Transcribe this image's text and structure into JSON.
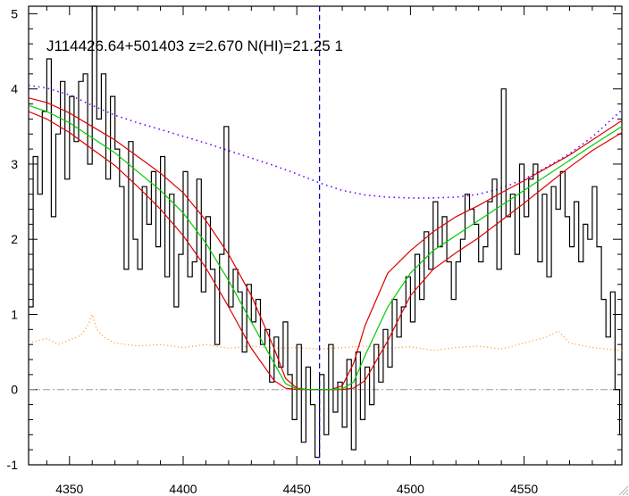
{
  "chart_data": {
    "type": "line",
    "title": "J114426.64+501403 z=2.670 N(HI)=21.25 1",
    "xlabel": "",
    "ylabel": "",
    "xlim": [
      4332,
      4593
    ],
    "ylim": [
      -1,
      5.1
    ],
    "xticks": [
      4350,
      4400,
      4450,
      4500,
      4550
    ],
    "yticks": [
      -1,
      0,
      1,
      2,
      3,
      4,
      5
    ],
    "grid": false,
    "vline_x": 4460,
    "zero_line_y": 0,
    "colors": {
      "flux": "#000000",
      "fit": "#00cc00",
      "fit_bounds": "#dd0000",
      "continuum": "#6a00ff",
      "error": "#ff8800",
      "zero_line": "#999999",
      "vline": "#0000cc"
    },
    "series": [
      {
        "key": "flux",
        "style": "step",
        "x": [
          4332,
          4334,
          4336,
          4338,
          4340,
          4342,
          4344,
          4346,
          4348,
          4350,
          4352,
          4354,
          4356,
          4358,
          4360,
          4362,
          4364,
          4366,
          4368,
          4370,
          4372,
          4374,
          4376,
          4378,
          4380,
          4382,
          4384,
          4386,
          4388,
          4390,
          4392,
          4394,
          4396,
          4398,
          4400,
          4402,
          4404,
          4406,
          4408,
          4410,
          4412,
          4414,
          4416,
          4418,
          4420,
          4422,
          4424,
          4426,
          4428,
          4430,
          4432,
          4434,
          4436,
          4438,
          4440,
          4442,
          4444,
          4446,
          4448,
          4450,
          4452,
          4454,
          4456,
          4458,
          4460,
          4462,
          4464,
          4466,
          4468,
          4470,
          4472,
          4474,
          4476,
          4478,
          4480,
          4482,
          4484,
          4486,
          4488,
          4490,
          4492,
          4494,
          4496,
          4498,
          4500,
          4502,
          4504,
          4506,
          4508,
          4510,
          4512,
          4514,
          4516,
          4518,
          4520,
          4522,
          4524,
          4526,
          4528,
          4530,
          4532,
          4534,
          4536,
          4538,
          4540,
          4542,
          4544,
          4546,
          4548,
          4550,
          4552,
          4554,
          4556,
          4558,
          4560,
          4562,
          4564,
          4566,
          4568,
          4570,
          4572,
          4574,
          4576,
          4578,
          4580,
          4582,
          4584,
          4586,
          4588,
          4590,
          4592
        ],
        "y": [
          1.1,
          3.1,
          2.6,
          3.7,
          4.4,
          2.3,
          3.4,
          4.1,
          2.8,
          3.9,
          3.3,
          4.1,
          4.2,
          3.0,
          5.1,
          3.6,
          4.2,
          2.8,
          3.9,
          3.2,
          2.7,
          1.6,
          3.3,
          2.0,
          1.6,
          2.7,
          2.2,
          2.9,
          1.9,
          3.1,
          1.5,
          2.6,
          1.1,
          1.8,
          2.9,
          1.5,
          1.7,
          2.8,
          1.3,
          2.3,
          1.6,
          0.6,
          1.8,
          3.5,
          1.1,
          1.6,
          1.3,
          0.5,
          1.4,
          0.9,
          1.2,
          0.6,
          0.8,
          0.1,
          0.7,
          0.3,
          0.9,
          0.2,
          -0.4,
          0.6,
          -0.7,
          0.3,
          -0.2,
          -0.9,
          0.2,
          -0.6,
          0.6,
          -0.3,
          0.1,
          -0.5,
          0.4,
          -0.8,
          0.5,
          -0.4,
          0.3,
          -0.2,
          0.6,
          0.1,
          0.8,
          0.3,
          1.2,
          0.7,
          1.1,
          1.5,
          0.9,
          1.8,
          1.2,
          2.1,
          1.6,
          2.5,
          1.9,
          2.3,
          1.7,
          1.2,
          1.7,
          2.0,
          2.6,
          2.4,
          2.2,
          1.7,
          1.9,
          2.5,
          2.8,
          1.6,
          4.0,
          2.3,
          2.6,
          1.8,
          3.0,
          2.3,
          2.8,
          3.0,
          1.7,
          2.6,
          1.5,
          2.7,
          2.4,
          2.9,
          2.3,
          1.9,
          2.5,
          1.7,
          2.2,
          2.0,
          2.7,
          1.9,
          1.2,
          0.7,
          1.3,
          0.0,
          -0.6
        ]
      },
      {
        "key": "fit",
        "x": [
          4332,
          4340,
          4350,
          4360,
          4370,
          4380,
          4390,
          4400,
          4410,
          4420,
          4430,
          4440,
          4445,
          4450,
          4455,
          4460,
          4465,
          4470,
          4475,
          4480,
          4490,
          4500,
          4510,
          4520,
          4530,
          4540,
          4550,
          4560,
          4570,
          4580,
          4593
        ],
        "y": [
          3.78,
          3.7,
          3.55,
          3.35,
          3.15,
          2.9,
          2.65,
          2.35,
          1.95,
          1.45,
          0.9,
          0.35,
          0.08,
          0.01,
          0.0,
          0.0,
          0.0,
          0.01,
          0.1,
          0.45,
          1.1,
          1.55,
          1.85,
          2.05,
          2.25,
          2.45,
          2.65,
          2.85,
          3.05,
          3.25,
          3.5
        ]
      },
      {
        "key": "fit_upper",
        "x": [
          4332,
          4340,
          4350,
          4360,
          4370,
          4380,
          4390,
          4400,
          4410,
          4420,
          4430,
          4440,
          4445,
          4450,
          4455,
          4460,
          4465,
          4470,
          4475,
          4480,
          4490,
          4500,
          4510,
          4520,
          4530,
          4540,
          4550,
          4560,
          4570,
          4580,
          4593
        ],
        "y": [
          3.88,
          3.82,
          3.68,
          3.5,
          3.32,
          3.1,
          2.88,
          2.62,
          2.25,
          1.8,
          1.25,
          0.55,
          0.15,
          0.02,
          0.0,
          0.0,
          0.0,
          0.05,
          0.35,
          0.85,
          1.55,
          1.85,
          2.1,
          2.3,
          2.45,
          2.62,
          2.78,
          2.95,
          3.12,
          3.32,
          3.58
        ]
      },
      {
        "key": "fit_lower",
        "x": [
          4332,
          4340,
          4350,
          4360,
          4370,
          4380,
          4390,
          4400,
          4410,
          4420,
          4430,
          4440,
          4445,
          4450,
          4455,
          4460,
          4465,
          4470,
          4475,
          4480,
          4490,
          4500,
          4510,
          4520,
          4530,
          4540,
          4550,
          4560,
          4570,
          4580,
          4593
        ],
        "y": [
          3.7,
          3.6,
          3.42,
          3.2,
          2.98,
          2.7,
          2.4,
          2.05,
          1.62,
          1.1,
          0.55,
          0.12,
          0.02,
          0.0,
          0.0,
          0.0,
          0.0,
          0.0,
          0.02,
          0.12,
          0.65,
          1.25,
          1.6,
          1.82,
          2.02,
          2.25,
          2.48,
          2.72,
          2.96,
          3.18,
          3.42
        ]
      },
      {
        "key": "continuum",
        "style": "dotted",
        "x": [
          4332,
          4340,
          4350,
          4360,
          4370,
          4380,
          4390,
          4400,
          4410,
          4420,
          4430,
          4440,
          4450,
          4460,
          4470,
          4480,
          4490,
          4500,
          4510,
          4520,
          4530,
          4540,
          4550,
          4560,
          4570,
          4580,
          4593
        ],
        "y": [
          4.05,
          4.01,
          3.92,
          3.78,
          3.65,
          3.55,
          3.46,
          3.37,
          3.28,
          3.18,
          3.08,
          2.98,
          2.87,
          2.75,
          2.65,
          2.59,
          2.56,
          2.55,
          2.55,
          2.56,
          2.6,
          2.68,
          2.8,
          2.96,
          3.14,
          3.36,
          3.72
        ]
      },
      {
        "key": "error",
        "style": "dotted",
        "x": [
          4332,
          4340,
          4345,
          4350,
          4355,
          4358,
          4360,
          4362,
          4365,
          4370,
          4380,
          4390,
          4400,
          4410,
          4420,
          4430,
          4440,
          4450,
          4460,
          4470,
          4480,
          4490,
          4500,
          4510,
          4520,
          4530,
          4540,
          4550,
          4560,
          4565,
          4570,
          4580,
          4593
        ],
        "y": [
          0.62,
          0.68,
          0.6,
          0.66,
          0.72,
          0.85,
          1.0,
          0.8,
          0.7,
          0.62,
          0.58,
          0.6,
          0.56,
          0.6,
          0.55,
          0.58,
          0.55,
          0.56,
          0.54,
          0.56,
          0.58,
          0.55,
          0.57,
          0.52,
          0.56,
          0.58,
          0.54,
          0.62,
          0.7,
          0.78,
          0.62,
          0.56,
          0.52
        ]
      }
    ]
  }
}
